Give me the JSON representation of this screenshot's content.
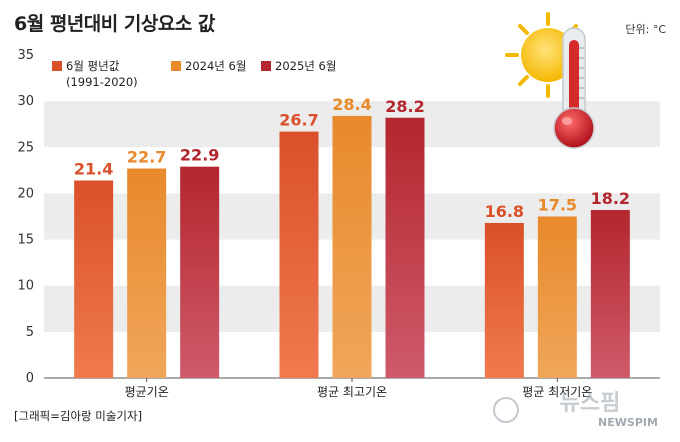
{
  "title": "6월 평년대비 기상요소 값",
  "unit_label": "단위: °C",
  "credit": "[그래픽=김아랑 미술기자]",
  "watermark": {
    "main": "뉴스핌",
    "sub": "NEWSPIM"
  },
  "legend": [
    {
      "line1": "6월 평년값",
      "line2": "(1991-2020)"
    },
    {
      "line1": "2024년 6월",
      "line2": ""
    },
    {
      "line1": "2025년 6월",
      "line2": ""
    }
  ],
  "colors": {
    "series_top": [
      "#d9502a",
      "#e8892c",
      "#b3262e"
    ],
    "series_bottom": [
      "#f07a4e",
      "#f0a65a",
      "#cf5a6a"
    ],
    "label": [
      "#d9502a",
      "#e8892c",
      "#b3262e"
    ],
    "band": "#ececec"
  },
  "chart_data": {
    "type": "bar",
    "title": "6월 평년대비 기상요소 값",
    "categories": [
      "평균기온",
      "평균 최고기온",
      "평균 최저기온"
    ],
    "series": [
      {
        "name": "6월 평년값 (1991-2020)",
        "values": [
          21.4,
          26.7,
          16.8
        ]
      },
      {
        "name": "2024년 6월",
        "values": [
          22.7,
          28.4,
          17.5
        ]
      },
      {
        "name": "2025년 6월",
        "values": [
          22.9,
          28.2,
          18.2
        ]
      }
    ],
    "ylim": [
      0,
      35
    ],
    "yticks": [
      0,
      5,
      10,
      15,
      20,
      25,
      30,
      35
    ],
    "xlabel": "",
    "ylabel": "",
    "grid": "alternating horizontal bands",
    "legend_position": "top-left"
  }
}
